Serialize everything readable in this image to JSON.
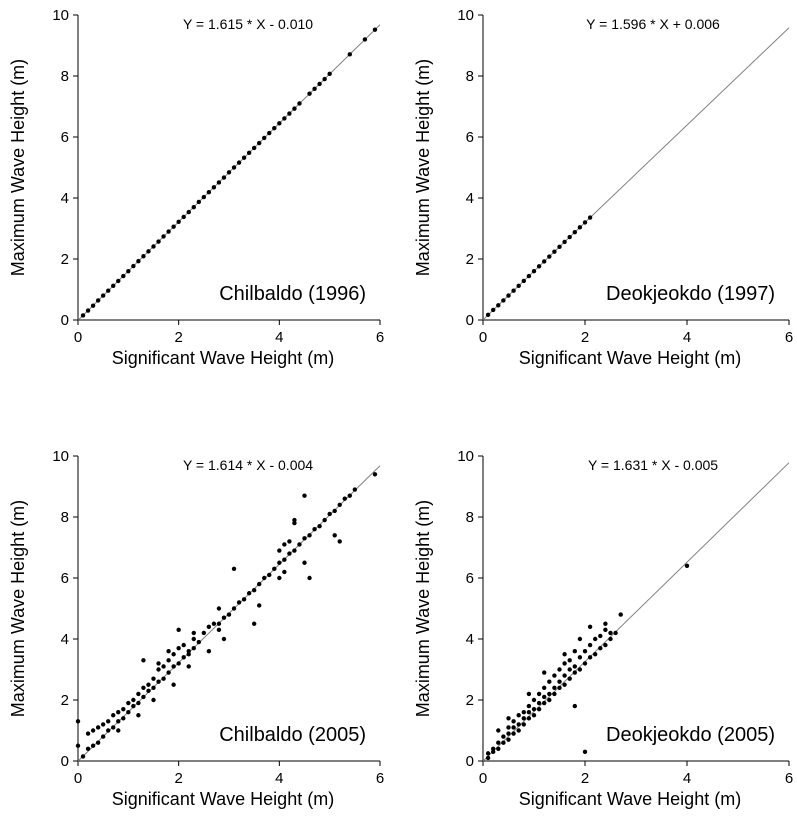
{
  "chart_data": [
    {
      "type": "scatter",
      "xlabel": "Significant Wave Height (m)",
      "ylabel": "Maximum Wave Height (m)",
      "xlim": [
        0,
        6
      ],
      "ylim": [
        0,
        10
      ],
      "xticks": [
        "0",
        "2",
        "4",
        "6"
      ],
      "yticks": [
        "0",
        "2",
        "4",
        "6",
        "8",
        "10"
      ],
      "grid": false,
      "equation": "Y = 1.615 * X - 0.010",
      "annotation": "Chilbaldo (1996)",
      "fit_line": {
        "slope": 1.615,
        "intercept": -0.01
      },
      "x": [
        0.1,
        0.2,
        0.3,
        0.4,
        0.5,
        0.6,
        0.7,
        0.8,
        0.9,
        1.0,
        1.1,
        1.2,
        1.3,
        1.4,
        1.5,
        1.6,
        1.7,
        1.8,
        1.9,
        2.0,
        2.1,
        2.2,
        2.3,
        2.4,
        2.5,
        2.6,
        2.7,
        2.8,
        2.9,
        3.0,
        3.1,
        3.2,
        3.3,
        3.4,
        3.5,
        3.6,
        3.7,
        3.8,
        3.9,
        4.0,
        4.1,
        4.2,
        4.3,
        4.4,
        4.6,
        4.7,
        4.8,
        4.9,
        5.0,
        5.4,
        5.7,
        5.9
      ],
      "y": [
        0.15,
        0.31,
        0.47,
        0.64,
        0.8,
        0.96,
        1.12,
        1.28,
        1.44,
        1.6,
        1.77,
        1.93,
        2.09,
        2.25,
        2.41,
        2.57,
        2.74,
        2.9,
        3.06,
        3.22,
        3.38,
        3.54,
        3.7,
        3.87,
        4.03,
        4.19,
        4.35,
        4.51,
        4.67,
        4.84,
        5.0,
        5.16,
        5.32,
        5.48,
        5.64,
        5.8,
        5.97,
        6.13,
        6.29,
        6.45,
        6.61,
        6.77,
        6.93,
        7.1,
        7.42,
        7.58,
        7.74,
        7.9,
        8.07,
        8.71,
        9.2,
        9.52
      ]
    },
    {
      "type": "scatter",
      "xlabel": "Significant Wave Height (m)",
      "ylabel": "Maximum Wave Height (m)",
      "xlim": [
        0,
        6
      ],
      "ylim": [
        0,
        10
      ],
      "xticks": [
        "0",
        "2",
        "4",
        "6"
      ],
      "yticks": [
        "0",
        "2",
        "4",
        "6",
        "8",
        "10"
      ],
      "grid": false,
      "equation": "Y = 1.596 * X + 0.006",
      "annotation": "Deokjeokdo (1997)",
      "fit_line": {
        "slope": 1.596,
        "intercept": 0.006
      },
      "x": [
        0.1,
        0.2,
        0.3,
        0.4,
        0.5,
        0.6,
        0.7,
        0.8,
        0.9,
        1.0,
        1.1,
        1.2,
        1.3,
        1.4,
        1.5,
        1.6,
        1.7,
        1.8,
        1.9,
        2.0,
        2.1
      ],
      "y": [
        0.17,
        0.33,
        0.48,
        0.64,
        0.8,
        0.96,
        1.12,
        1.28,
        1.44,
        1.6,
        1.76,
        1.92,
        2.08,
        2.24,
        2.4,
        2.56,
        2.72,
        2.88,
        3.04,
        3.2,
        3.36
      ]
    },
    {
      "type": "scatter",
      "xlabel": "Significant Wave Height (m)",
      "ylabel": "Maximum Wave Height (m)",
      "xlim": [
        0,
        6
      ],
      "ylim": [
        0,
        10
      ],
      "xticks": [
        "0",
        "2",
        "4",
        "6"
      ],
      "yticks": [
        "0",
        "2",
        "4",
        "6",
        "8",
        "10"
      ],
      "grid": false,
      "equation": "Y = 1.614 * X - 0.004",
      "annotation": "Chilbaldo (2005)",
      "fit_line": {
        "slope": 1.614,
        "intercept": -0.004
      },
      "x": [
        0.0,
        0.0,
        0.1,
        0.2,
        0.2,
        0.3,
        0.3,
        0.4,
        0.4,
        0.5,
        0.5,
        0.6,
        0.6,
        0.7,
        0.7,
        0.8,
        0.8,
        0.9,
        0.9,
        1.0,
        1.0,
        1.1,
        1.1,
        1.2,
        1.2,
        1.3,
        1.3,
        1.4,
        1.4,
        1.5,
        1.5,
        1.6,
        1.6,
        1.7,
        1.7,
        1.8,
        1.8,
        1.9,
        1.9,
        2.0,
        2.0,
        2.1,
        2.1,
        2.2,
        2.2,
        2.3,
        2.3,
        2.4,
        2.5,
        2.6,
        2.7,
        2.8,
        2.8,
        2.9,
        3.0,
        3.1,
        3.2,
        3.3,
        3.4,
        3.5,
        3.6,
        3.7,
        3.8,
        3.9,
        4.0,
        4.0,
        4.1,
        4.1,
        4.2,
        4.2,
        4.3,
        4.3,
        4.4,
        4.5,
        4.5,
        4.6,
        4.7,
        4.8,
        4.9,
        5.0,
        5.1,
        5.2,
        5.3,
        5.4,
        5.5,
        5.9,
        1.3,
        1.6,
        1.8,
        2.0,
        2.3,
        2.8,
        3.1,
        3.6,
        4.0,
        4.3,
        4.6,
        5.2,
        0.8,
        1.2,
        1.5,
        1.9,
        2.2,
        2.6,
        2.9,
        3.5,
        4.1,
        4.5,
        5.1
      ],
      "y": [
        1.3,
        0.5,
        0.15,
        0.4,
        0.9,
        0.5,
        1.0,
        0.6,
        1.1,
        0.8,
        1.2,
        1.0,
        1.3,
        1.1,
        1.5,
        1.3,
        1.6,
        1.4,
        1.7,
        1.6,
        1.9,
        1.8,
        2.0,
        1.9,
        2.2,
        2.1,
        2.4,
        2.3,
        2.5,
        2.4,
        2.7,
        2.6,
        3.0,
        2.7,
        3.1,
        2.9,
        3.3,
        3.1,
        3.5,
        3.2,
        3.7,
        3.4,
        3.8,
        3.5,
        3.6,
        3.7,
        4.0,
        3.9,
        4.2,
        4.4,
        4.5,
        4.5,
        5.0,
        4.7,
        4.8,
        5.0,
        5.2,
        5.3,
        5.5,
        5.6,
        5.8,
        6.0,
        6.1,
        6.3,
        6.5,
        6.9,
        6.6,
        7.1,
        6.8,
        7.2,
        6.9,
        7.9,
        7.1,
        7.3,
        8.7,
        7.4,
        7.6,
        7.7,
        7.9,
        8.1,
        8.2,
        8.4,
        8.6,
        8.7,
        8.9,
        9.4,
        3.3,
        3.2,
        3.6,
        4.3,
        4.2,
        4.3,
        6.3,
        5.1,
        6.0,
        7.8,
        6.0,
        7.2,
        1.0,
        1.5,
        2.0,
        2.5,
        3.1,
        3.6,
        4.0,
        4.5,
        6.2,
        6.5,
        7.4
      ]
    },
    {
      "type": "scatter",
      "xlabel": "Significant Wave Height (m)",
      "ylabel": "Maximum Wave Height (m)",
      "xlim": [
        0,
        6
      ],
      "ylim": [
        0,
        10
      ],
      "xticks": [
        "0",
        "2",
        "4",
        "6"
      ],
      "yticks": [
        "0",
        "2",
        "4",
        "6",
        "8",
        "10"
      ],
      "grid": false,
      "equation": "Y = 1.631 * X - 0.005",
      "annotation": "Deokjeokdo (2005)",
      "fit_line": {
        "slope": 1.631,
        "intercept": -0.005
      },
      "x": [
        0.1,
        0.1,
        0.2,
        0.2,
        0.3,
        0.3,
        0.4,
        0.4,
        0.5,
        0.5,
        0.5,
        0.6,
        0.6,
        0.6,
        0.7,
        0.7,
        0.7,
        0.8,
        0.8,
        0.8,
        0.9,
        0.9,
        0.9,
        1.0,
        1.0,
        1.0,
        1.1,
        1.1,
        1.1,
        1.2,
        1.2,
        1.2,
        1.3,
        1.3,
        1.3,
        1.4,
        1.4,
        1.4,
        1.5,
        1.5,
        1.5,
        1.6,
        1.6,
        1.6,
        1.7,
        1.7,
        1.7,
        1.8,
        1.8,
        1.8,
        1.9,
        1.9,
        2.0,
        2.0,
        2.1,
        2.1,
        2.2,
        2.2,
        2.3,
        2.3,
        2.4,
        2.4,
        2.5,
        2.5,
        2.6,
        2.7,
        1.8,
        2.0,
        4.0,
        0.3,
        0.5,
        0.9,
        1.2,
        1.6,
        2.1,
        2.4,
        1.9
      ],
      "y": [
        0.1,
        0.25,
        0.3,
        0.4,
        0.4,
        0.6,
        0.6,
        0.8,
        0.7,
        0.9,
        1.1,
        0.9,
        1.1,
        1.3,
        1.0,
        1.2,
        1.5,
        1.2,
        1.4,
        1.6,
        1.4,
        1.6,
        1.8,
        1.5,
        1.7,
        2.0,
        1.7,
        1.9,
        2.2,
        1.9,
        2.1,
        2.4,
        2.0,
        2.2,
        2.6,
        2.2,
        2.4,
        2.8,
        2.4,
        2.6,
        3.0,
        2.5,
        2.8,
        3.2,
        2.7,
        3.0,
        3.3,
        2.9,
        3.1,
        3.6,
        3.0,
        3.4,
        3.2,
        3.6,
        3.4,
        3.8,
        3.5,
        4.0,
        3.7,
        4.1,
        3.8,
        4.3,
        4.0,
        4.2,
        4.2,
        4.8,
        1.8,
        0.3,
        6.4,
        1.0,
        1.4,
        2.2,
        2.9,
        3.5,
        4.4,
        4.5,
        4.0
      ]
    }
  ]
}
